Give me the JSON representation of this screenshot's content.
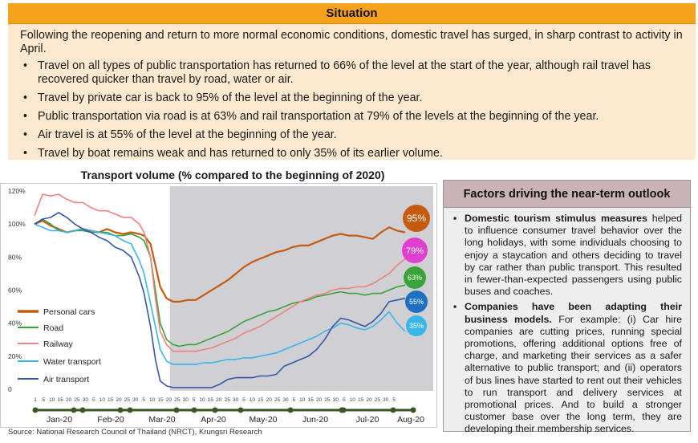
{
  "situation": {
    "title": "Situation",
    "intro": "Following the reopening and return to more normal economic conditions, domestic travel has surged, in sharp contrast to activity in April.",
    "bullets": [
      "Travel on all types of public transportation has returned to 66% of  the level at the start of the year, although rail  travel has recovered quicker than travel by road, water or air.",
      "Travel by private car is back to 95% of the level at the beginning of the year.",
      "Public transportation via road is at 63% and rail transportation at 79% of the levels at the beginning of the year.",
      "Air travel is at 55% of the level at the beginning of the year.",
      "Travel by boat remains weak and has returned to only 35% of its earlier volume."
    ]
  },
  "factors": {
    "title": "Factors driving the near-term outlook",
    "items": [
      {
        "bold": "Domestic tourism stimulus measures",
        "text": " helped to influence consumer travel behavior over the long holidays, with some individuals choosing to enjoy a staycation and others deciding to travel by car rather than public transport. This resulted in fewer-than-expected passengers using public buses and coaches."
      },
      {
        "bold": "Companies have been adapting their business models.",
        "text": " For example: (i) Car hire companies are cutting prices, running special promotions, offering additional options free of charge, and marketing their services as a safer alternative to public transport; and (ii) operators of bus lines have started to rent out their vehicles to run transport and delivery services at promotional prices. And to build a stronger customer base over the long term, they are developing their membership services."
      }
    ]
  },
  "source": "Source: National Research Council of Thailand (NRCT), Krungsri Research",
  "colors": {
    "personal_cars": "#c55a11",
    "road": "#3aa33a",
    "railway": "#f08080",
    "water_transport": "#38b6e8",
    "air_transport": "#3456a6",
    "shade": "#d0d0d4",
    "timeline": "#385723"
  },
  "chart_data": {
    "type": "line",
    "title": "Transport volume (% compared to the beginning of 2020)",
    "ylim": [
      0,
      120
    ],
    "yticks": [
      "0",
      "20%",
      "40%",
      "60%",
      "80%",
      "100%",
      "120%"
    ],
    "months": [
      "Jan-20",
      "Feb-20",
      "Mar-20",
      "Apr-20",
      "May-20",
      "Jun-20",
      "Jul-20",
      "Aug-20"
    ],
    "day_ticks": [
      "1",
      "5",
      "10",
      "15",
      "20",
      "25",
      "30",
      "5",
      "10",
      "15",
      "20",
      "25",
      "30",
      "5",
      "10",
      "15",
      "20",
      "25",
      "30",
      "5",
      "10",
      "15",
      "20",
      "25",
      "30",
      "5",
      "10",
      "15",
      "20",
      "25",
      "30",
      "5",
      "10",
      "15",
      "20",
      "25",
      "30",
      "5",
      "10",
      "15",
      "20",
      "25",
      "30",
      "5"
    ],
    "shaded_period": [
      "Mar-25",
      "Aug-10"
    ],
    "end_labels": [
      "95%",
      "79%",
      "63%",
      "55%",
      "35%"
    ],
    "series": [
      {
        "name": "Personal cars",
        "values": [
          [
            0,
            100
          ],
          [
            5,
            102
          ],
          [
            10,
            99
          ],
          [
            15,
            97
          ],
          [
            20,
            95
          ],
          [
            25,
            96
          ],
          [
            30,
            97
          ],
          [
            35,
            96
          ],
          [
            40,
            95
          ],
          [
            45,
            97
          ],
          [
            50,
            95
          ],
          [
            55,
            94
          ],
          [
            60,
            95
          ],
          [
            65,
            94
          ],
          [
            68,
            93
          ],
          [
            72,
            88
          ],
          [
            75,
            75
          ],
          [
            78,
            62
          ],
          [
            82,
            55
          ],
          [
            86,
            53
          ],
          [
            90,
            53
          ],
          [
            95,
            54
          ],
          [
            100,
            54
          ],
          [
            105,
            57
          ],
          [
            110,
            60
          ],
          [
            115,
            63
          ],
          [
            120,
            66
          ],
          [
            125,
            70
          ],
          [
            130,
            74
          ],
          [
            135,
            77
          ],
          [
            140,
            79
          ],
          [
            145,
            81
          ],
          [
            150,
            83
          ],
          [
            155,
            84
          ],
          [
            160,
            86
          ],
          [
            165,
            87
          ],
          [
            170,
            87
          ],
          [
            175,
            89
          ],
          [
            180,
            91
          ],
          [
            185,
            93
          ],
          [
            190,
            94
          ],
          [
            195,
            93
          ],
          [
            200,
            93
          ],
          [
            205,
            92
          ],
          [
            210,
            91
          ],
          [
            215,
            95
          ],
          [
            220,
            98
          ],
          [
            225,
            96
          ],
          [
            230,
            95
          ]
        ]
      },
      {
        "name": "Road",
        "values": [
          [
            0,
            100
          ],
          [
            5,
            103
          ],
          [
            10,
            100
          ],
          [
            15,
            96
          ],
          [
            20,
            95
          ],
          [
            25,
            96
          ],
          [
            30,
            96
          ],
          [
            35,
            95
          ],
          [
            40,
            95
          ],
          [
            45,
            95
          ],
          [
            50,
            93
          ],
          [
            55,
            93
          ],
          [
            60,
            94
          ],
          [
            65,
            92
          ],
          [
            68,
            90
          ],
          [
            72,
            80
          ],
          [
            75,
            60
          ],
          [
            78,
            40
          ],
          [
            82,
            30
          ],
          [
            86,
            27
          ],
          [
            90,
            26
          ],
          [
            95,
            27
          ],
          [
            100,
            27
          ],
          [
            105,
            29
          ],
          [
            110,
            31
          ],
          [
            115,
            33
          ],
          [
            120,
            35
          ],
          [
            125,
            38
          ],
          [
            130,
            41
          ],
          [
            135,
            43
          ],
          [
            140,
            45
          ],
          [
            145,
            47
          ],
          [
            150,
            48
          ],
          [
            155,
            50
          ],
          [
            160,
            52
          ],
          [
            165,
            53
          ],
          [
            170,
            54
          ],
          [
            175,
            56
          ],
          [
            180,
            57
          ],
          [
            185,
            58
          ],
          [
            190,
            59
          ],
          [
            195,
            58
          ],
          [
            200,
            58
          ],
          [
            205,
            57
          ],
          [
            210,
            58
          ],
          [
            215,
            58
          ],
          [
            220,
            60
          ],
          [
            225,
            62
          ],
          [
            230,
            63
          ]
        ]
      },
      {
        "name": "Railway",
        "values": [
          [
            0,
            105
          ],
          [
            5,
            118
          ],
          [
            10,
            117
          ],
          [
            15,
            118
          ],
          [
            20,
            115
          ],
          [
            25,
            113
          ],
          [
            30,
            113
          ],
          [
            35,
            110
          ],
          [
            40,
            108
          ],
          [
            45,
            108
          ],
          [
            50,
            106
          ],
          [
            55,
            104
          ],
          [
            60,
            104
          ],
          [
            65,
            100
          ],
          [
            68,
            95
          ],
          [
            72,
            80
          ],
          [
            75,
            55
          ],
          [
            78,
            35
          ],
          [
            82,
            27
          ],
          [
            86,
            23
          ],
          [
            90,
            23
          ],
          [
            95,
            23
          ],
          [
            100,
            23
          ],
          [
            105,
            24
          ],
          [
            110,
            25
          ],
          [
            115,
            27
          ],
          [
            120,
            29
          ],
          [
            125,
            31
          ],
          [
            130,
            34
          ],
          [
            135,
            36
          ],
          [
            140,
            38
          ],
          [
            145,
            41
          ],
          [
            150,
            44
          ],
          [
            155,
            47
          ],
          [
            160,
            50
          ],
          [
            165,
            53
          ],
          [
            170,
            55
          ],
          [
            175,
            57
          ],
          [
            180,
            58
          ],
          [
            185,
            60
          ],
          [
            190,
            61
          ],
          [
            195,
            61
          ],
          [
            200,
            62
          ],
          [
            205,
            62
          ],
          [
            210,
            64
          ],
          [
            215,
            67
          ],
          [
            220,
            70
          ],
          [
            225,
            75
          ],
          [
            230,
            79
          ]
        ]
      },
      {
        "name": "Water transport",
        "values": [
          [
            0,
            100
          ],
          [
            5,
            98
          ],
          [
            10,
            96
          ],
          [
            15,
            96
          ],
          [
            20,
            95
          ],
          [
            25,
            96
          ],
          [
            30,
            97
          ],
          [
            35,
            96
          ],
          [
            40,
            95
          ],
          [
            45,
            94
          ],
          [
            50,
            93
          ],
          [
            55,
            90
          ],
          [
            60,
            88
          ],
          [
            65,
            78
          ],
          [
            68,
            70
          ],
          [
            72,
            52
          ],
          [
            75,
            38
          ],
          [
            78,
            24
          ],
          [
            82,
            17
          ],
          [
            86,
            15
          ],
          [
            90,
            15
          ],
          [
            95,
            15
          ],
          [
            100,
            15
          ],
          [
            105,
            16
          ],
          [
            110,
            16
          ],
          [
            115,
            17
          ],
          [
            120,
            18
          ],
          [
            125,
            18
          ],
          [
            130,
            19
          ],
          [
            135,
            19
          ],
          [
            140,
            20
          ],
          [
            145,
            21
          ],
          [
            150,
            22
          ],
          [
            155,
            24
          ],
          [
            160,
            26
          ],
          [
            165,
            28
          ],
          [
            170,
            30
          ],
          [
            175,
            32
          ],
          [
            180,
            35
          ],
          [
            185,
            37
          ],
          [
            190,
            40
          ],
          [
            195,
            39
          ],
          [
            200,
            37
          ],
          [
            205,
            36
          ],
          [
            210,
            38
          ],
          [
            215,
            42
          ],
          [
            220,
            47
          ],
          [
            225,
            40
          ],
          [
            230,
            35
          ]
        ]
      },
      {
        "name": "Air transport",
        "values": [
          [
            0,
            100
          ],
          [
            5,
            103
          ],
          [
            10,
            104
          ],
          [
            15,
            107
          ],
          [
            20,
            104
          ],
          [
            25,
            100
          ],
          [
            30,
            97
          ],
          [
            35,
            95
          ],
          [
            40,
            92
          ],
          [
            45,
            90
          ],
          [
            50,
            86
          ],
          [
            55,
            84
          ],
          [
            60,
            80
          ],
          [
            65,
            68
          ],
          [
            68,
            58
          ],
          [
            72,
            38
          ],
          [
            75,
            18
          ],
          [
            78,
            5
          ],
          [
            82,
            2
          ],
          [
            86,
            1
          ],
          [
            90,
            1
          ],
          [
            95,
            1
          ],
          [
            100,
            1
          ],
          [
            105,
            1
          ],
          [
            110,
            1
          ],
          [
            115,
            3
          ],
          [
            120,
            6
          ],
          [
            125,
            7
          ],
          [
            130,
            7
          ],
          [
            135,
            7
          ],
          [
            140,
            8
          ],
          [
            145,
            8
          ],
          [
            150,
            9
          ],
          [
            155,
            14
          ],
          [
            160,
            16
          ],
          [
            165,
            18
          ],
          [
            170,
            20
          ],
          [
            175,
            24
          ],
          [
            180,
            30
          ],
          [
            185,
            38
          ],
          [
            190,
            43
          ],
          [
            195,
            42
          ],
          [
            200,
            40
          ],
          [
            205,
            38
          ],
          [
            210,
            41
          ],
          [
            215,
            46
          ],
          [
            220,
            53
          ],
          [
            225,
            54
          ],
          [
            230,
            55
          ]
        ]
      }
    ]
  }
}
